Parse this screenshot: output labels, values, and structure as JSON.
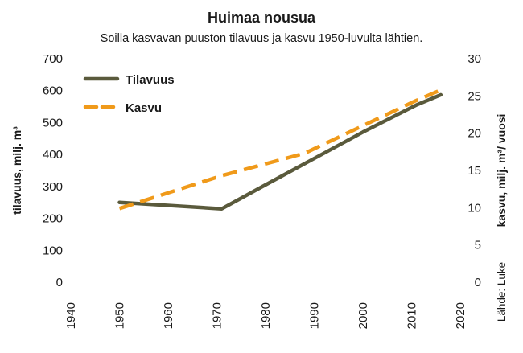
{
  "chart_data": {
    "type": "line",
    "title": "Huimaa nousua",
    "subtitle": "Soilla kasvavan puuston tilavuus ja kasvu 1950-luvulta lähtien.",
    "xlabel": "",
    "ylabel_left": "tilavuus, milj. m³",
    "ylabel_right": "kasvu, milj. m³/ vuosi",
    "source": "Lähde: Luke",
    "x_ticks": [
      "1940",
      "1950",
      "1960",
      "1970",
      "1980",
      "1990",
      "2000",
      "2010",
      "2020"
    ],
    "xlim": [
      1940,
      2020
    ],
    "y_left_ticks": [
      "0",
      "100",
      "200",
      "300",
      "400",
      "500",
      "600",
      "700"
    ],
    "ylim_left": [
      0,
      700
    ],
    "y_right_ticks": [
      "0",
      "5",
      "10",
      "15",
      "20",
      "25",
      "30"
    ],
    "ylim_right": [
      0,
      30
    ],
    "grid": false,
    "legend_position": "top-left",
    "series": [
      {
        "name": "Tilavuus",
        "axis": "left",
        "style": "solid",
        "color": "#5a5a3c",
        "points": [
          [
            1950,
            250
          ],
          [
            1971,
            230
          ],
          [
            1980,
            305
          ],
          [
            2000,
            470
          ],
          [
            2011,
            555
          ],
          [
            2016,
            587
          ]
        ]
      },
      {
        "name": "Kasvu",
        "axis": "right",
        "style": "dashed",
        "color": "#f09a1a",
        "points": [
          [
            1950,
            9.9
          ],
          [
            1971,
            14.3
          ],
          [
            1988,
            17.3
          ],
          [
            2011,
            24.4
          ],
          [
            2016,
            25.8
          ]
        ]
      }
    ]
  }
}
